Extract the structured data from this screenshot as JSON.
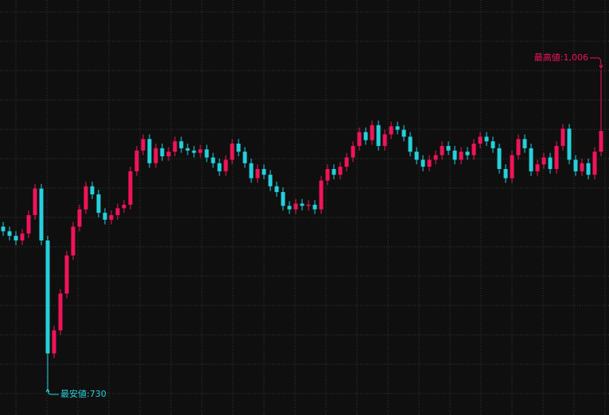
{
  "chart_data": {
    "type": "candlestick",
    "open": [
      870,
      866,
      862,
      858,
      864,
      880,
      903,
      858,
      760,
      780,
      812,
      845,
      870,
      885,
      905,
      898,
      882,
      876,
      880,
      886,
      889,
      918,
      936,
      946,
      925,
      938,
      931,
      935,
      944,
      938,
      936,
      934,
      937,
      930,
      925,
      918,
      928,
      942,
      935,
      925,
      912,
      920,
      915,
      905,
      900,
      888,
      885,
      890,
      888,
      889,
      885,
      910,
      920,
      915,
      922,
      930,
      940,
      952,
      945,
      958,
      940,
      950,
      957,
      954,
      948,
      935,
      928,
      922,
      928,
      932,
      940,
      936,
      928,
      935,
      932,
      942,
      948,
      944,
      938,
      920,
      912,
      932,
      946,
      938,
      918,
      924,
      930,
      920,
      940,
      955,
      928,
      918,
      925,
      915,
      935
    ],
    "high": [
      874,
      870,
      866,
      868,
      884,
      907,
      907,
      862,
      784,
      816,
      849,
      874,
      889,
      909,
      909,
      902,
      886,
      884,
      890,
      893,
      922,
      940,
      950,
      950,
      942,
      942,
      939,
      948,
      948,
      942,
      940,
      941,
      941,
      934,
      929,
      932,
      946,
      946,
      939,
      929,
      924,
      924,
      919,
      909,
      904,
      892,
      894,
      894,
      893,
      893,
      914,
      924,
      924,
      926,
      934,
      944,
      956,
      956,
      962,
      962,
      954,
      961,
      961,
      958,
      952,
      939,
      932,
      932,
      936,
      944,
      944,
      940,
      939,
      939,
      946,
      952,
      952,
      948,
      942,
      924,
      936,
      950,
      950,
      942,
      928,
      934,
      934,
      944,
      959,
      959,
      932,
      929,
      929,
      939,
      1006
    ],
    "low": [
      862,
      858,
      854,
      854,
      860,
      876,
      854,
      730,
      756,
      776,
      808,
      841,
      866,
      881,
      894,
      878,
      872,
      872,
      876,
      882,
      885,
      914,
      932,
      921,
      921,
      927,
      927,
      931,
      934,
      932,
      930,
      930,
      926,
      921,
      914,
      914,
      924,
      931,
      921,
      908,
      908,
      911,
      901,
      896,
      884,
      881,
      881,
      884,
      884,
      881,
      881,
      906,
      911,
      911,
      918,
      926,
      936,
      941,
      941,
      936,
      936,
      946,
      950,
      944,
      931,
      924,
      918,
      918,
      924,
      928,
      932,
      924,
      924,
      928,
      928,
      938,
      940,
      934,
      916,
      908,
      908,
      928,
      934,
      914,
      914,
      920,
      916,
      916,
      936,
      924,
      914,
      914,
      911,
      911,
      931
    ],
    "close": [
      866,
      862,
      858,
      864,
      880,
      903,
      858,
      760,
      780,
      812,
      845,
      870,
      885,
      905,
      898,
      882,
      876,
      880,
      886,
      889,
      918,
      936,
      946,
      925,
      938,
      931,
      935,
      944,
      938,
      936,
      934,
      937,
      930,
      925,
      918,
      928,
      942,
      935,
      925,
      912,
      920,
      915,
      905,
      900,
      888,
      885,
      890,
      888,
      889,
      885,
      910,
      920,
      915,
      922,
      930,
      940,
      952,
      945,
      958,
      940,
      950,
      957,
      954,
      948,
      935,
      928,
      922,
      928,
      932,
      940,
      936,
      928,
      935,
      932,
      942,
      948,
      944,
      938,
      920,
      912,
      932,
      946,
      938,
      918,
      924,
      930,
      920,
      940,
      955,
      928,
      918,
      925,
      915,
      935,
      953
    ],
    "up_color": "#f0145a",
    "down_color": "#26d0dc",
    "ylim": [
      706.6,
      1066.6
    ],
    "grid": true,
    "annotations": [
      {
        "value": 1006,
        "label": "最高値:1,006",
        "index": 94
      },
      {
        "value": 730,
        "label": "最安値:730",
        "index": 7
      }
    ]
  }
}
